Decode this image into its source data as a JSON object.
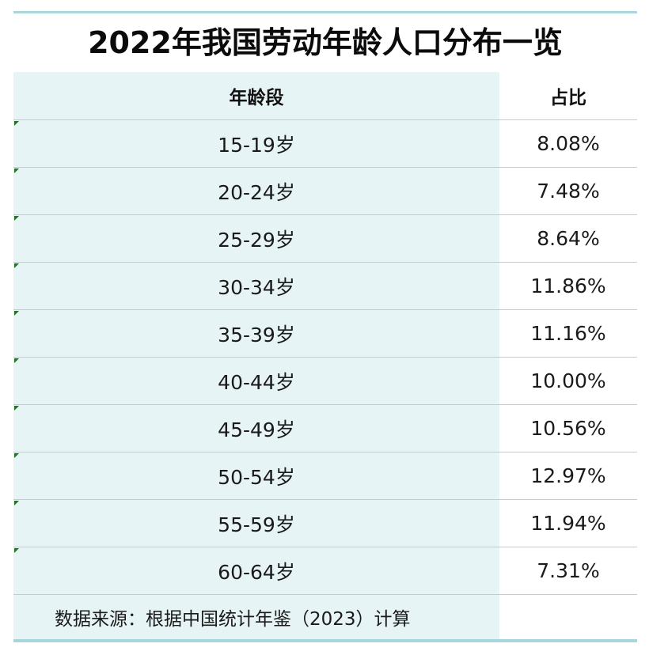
{
  "chart_data": {
    "type": "table",
    "title": "2022年我国劳动年龄人口分布一览",
    "columns": [
      "年龄段",
      "占比"
    ],
    "rows": [
      {
        "age": "15-19岁",
        "share": "8.08%"
      },
      {
        "age": "20-24岁",
        "share": "7.48%"
      },
      {
        "age": "25-29岁",
        "share": "8.64%"
      },
      {
        "age": "30-34岁",
        "share": "11.86%"
      },
      {
        "age": "35-39岁",
        "share": "11.16%"
      },
      {
        "age": "40-44岁",
        "share": "10.00%"
      },
      {
        "age": "45-49岁",
        "share": "10.56%"
      },
      {
        "age": "50-54岁",
        "share": "12.97%"
      },
      {
        "age": "55-59岁",
        "share": "11.94%"
      },
      {
        "age": "60-64岁",
        "share": "7.31%"
      }
    ],
    "source": "数据来源：根据中国统计年鉴（2023）计算"
  },
  "colors": {
    "rule": "#a7d6dd",
    "left_column_fill": "#e7f4f5",
    "cell_marker": "#1a7a1a"
  }
}
